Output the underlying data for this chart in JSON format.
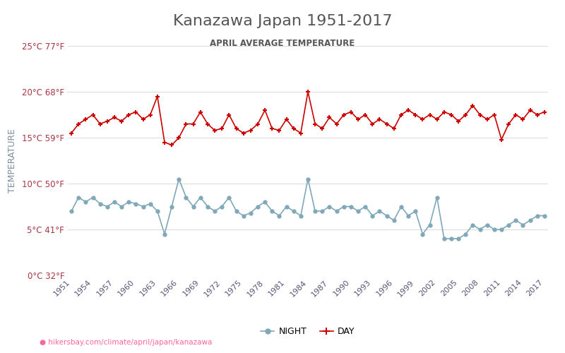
{
  "title": "Kanazawa Japan 1951-2017",
  "subtitle": "APRIL AVERAGE TEMPERATURE",
  "ylabel": "TEMPERATURE",
  "url_text": "hikersbay.com/climate/april/japan/kanazawa",
  "years": [
    1951,
    1952,
    1953,
    1954,
    1955,
    1956,
    1957,
    1958,
    1959,
    1960,
    1961,
    1962,
    1963,
    1964,
    1965,
    1966,
    1967,
    1968,
    1969,
    1970,
    1971,
    1972,
    1973,
    1974,
    1975,
    1976,
    1977,
    1978,
    1979,
    1980,
    1981,
    1982,
    1983,
    1984,
    1985,
    1986,
    1987,
    1988,
    1989,
    1990,
    1991,
    1992,
    1993,
    1994,
    1995,
    1996,
    1997,
    1998,
    1999,
    2000,
    2001,
    2002,
    2003,
    2004,
    2005,
    2006,
    2007,
    2008,
    2009,
    2010,
    2011,
    2012,
    2013,
    2014,
    2015,
    2016,
    2017
  ],
  "day_temps": [
    15.5,
    16.5,
    17.0,
    17.5,
    16.5,
    16.8,
    17.2,
    16.8,
    17.5,
    17.8,
    17.0,
    17.5,
    19.5,
    14.5,
    14.2,
    15.0,
    16.5,
    16.5,
    17.8,
    16.5,
    15.8,
    16.0,
    17.5,
    16.0,
    15.5,
    15.8,
    16.5,
    18.0,
    16.0,
    15.8,
    17.0,
    16.0,
    15.5,
    20.0,
    16.5,
    16.0,
    17.2,
    16.5,
    17.5,
    17.8,
    17.0,
    17.5,
    16.5,
    17.0,
    16.5,
    16.0,
    17.5,
    18.0,
    17.5,
    17.0,
    17.5,
    17.0,
    17.8,
    17.5,
    16.8,
    17.5,
    18.5,
    17.5,
    17.0,
    17.5,
    14.8,
    16.5,
    17.5,
    17.0,
    18.0,
    17.5,
    17.8
  ],
  "night_temps": [
    7.0,
    8.5,
    8.0,
    8.5,
    7.8,
    7.5,
    8.0,
    7.5,
    8.0,
    7.8,
    7.5,
    7.8,
    7.0,
    4.5,
    7.5,
    10.5,
    8.5,
    7.5,
    8.5,
    7.5,
    7.0,
    7.5,
    8.5,
    7.0,
    6.5,
    6.8,
    7.5,
    8.0,
    7.0,
    6.5,
    7.5,
    7.0,
    6.5,
    10.5,
    7.0,
    7.0,
    7.5,
    7.0,
    7.5,
    7.5,
    7.0,
    7.5,
    6.5,
    7.0,
    6.5,
    6.0,
    7.5,
    6.5,
    7.0,
    4.5,
    5.5,
    8.5,
    4.0,
    4.0,
    4.0,
    4.5,
    5.5,
    5.0,
    5.5,
    5.0,
    5.0,
    5.5,
    6.0,
    5.5,
    6.0,
    6.5,
    6.5
  ],
  "day_color": "#cc0000",
  "night_color": "#7fa8b8",
  "grid_color": "#dddddd",
  "title_color": "#555555",
  "subtitle_color": "#555555",
  "ylabel_color": "#7a8fa0",
  "tick_color": "#aa3344",
  "xtick_color": "#555577",
  "bg_color": "#ffffff",
  "ylim": [
    0,
    25
  ],
  "yticks_c": [
    0,
    5,
    10,
    15,
    20,
    25
  ],
  "yticks_f": [
    32,
    41,
    50,
    59,
    68,
    77
  ],
  "xtick_years": [
    1951,
    1954,
    1957,
    1960,
    1963,
    1966,
    1969,
    1972,
    1975,
    1978,
    1981,
    1984,
    1987,
    1990,
    1993,
    1996,
    1999,
    2002,
    2005,
    2008,
    2011,
    2014,
    2017
  ],
  "url_color": "#ff6699",
  "legend_night": "NIGHT",
  "legend_day": "DAY"
}
